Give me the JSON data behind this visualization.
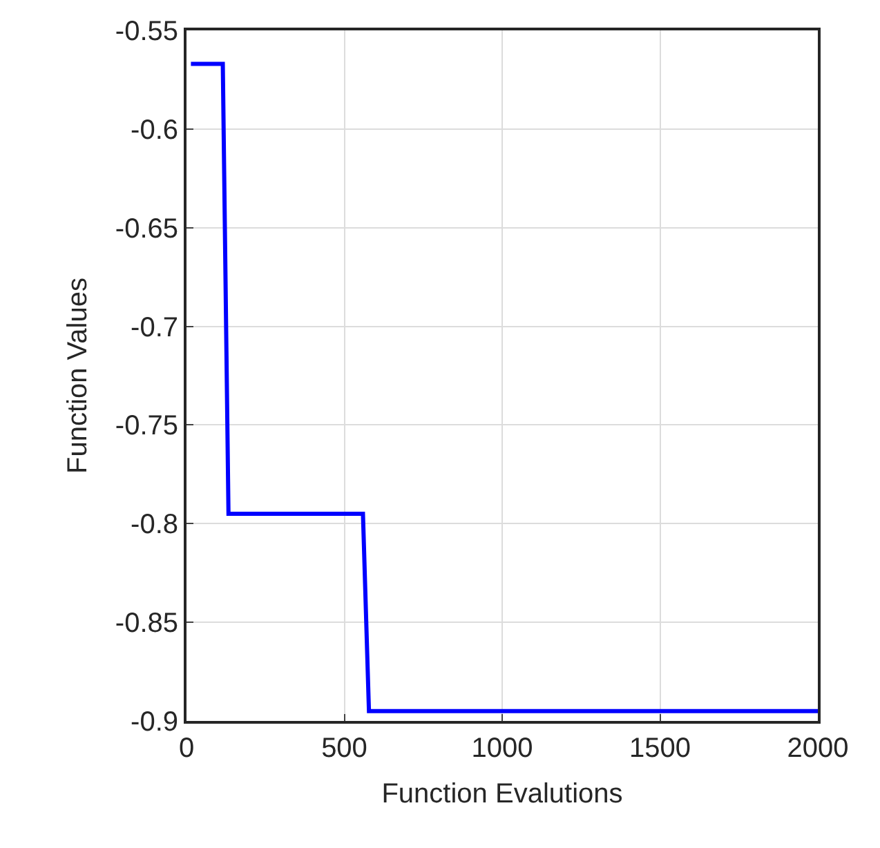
{
  "chart_data": {
    "type": "line",
    "xlabel": "Function Evalutions",
    "ylabel": "Function Values",
    "x": [
      14,
      115,
      133,
      559,
      578,
      2000
    ],
    "series": [
      {
        "color": "#0000ff",
        "values": [
          -0.567,
          -0.567,
          -0.795,
          -0.795,
          -0.895,
          -0.895
        ]
      }
    ],
    "xlim": [
      0,
      2000
    ],
    "xticks": [
      0,
      500,
      1000,
      1500,
      2000
    ],
    "ylim": [
      -0.9,
      -0.55
    ],
    "yticks": [
      -0.9,
      -0.85,
      -0.8,
      -0.75,
      -0.7,
      -0.65,
      -0.6,
      -0.55
    ],
    "grid": true
  }
}
